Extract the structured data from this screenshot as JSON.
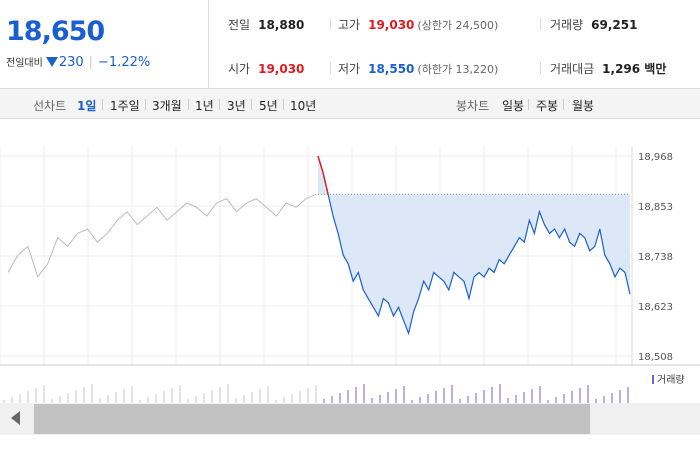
{
  "summary": {
    "current_price": "18,650",
    "change_label": "전일대비",
    "change_amount": "230",
    "change_pct": "−1.22%",
    "stats": {
      "prev_close": {
        "label": "전일",
        "value": "18,880"
      },
      "high": {
        "label": "고가",
        "value": "19,030",
        "sub": "(상한가 24,500)"
      },
      "volume": {
        "label": "거래량",
        "value": "69,251"
      },
      "open": {
        "label": "시가",
        "value": "19,030"
      },
      "low": {
        "label": "저가",
        "value": "18,550",
        "sub": "(하한가 13,220)"
      },
      "trade_value": {
        "label": "거래대금",
        "value": "1,296 백만"
      }
    }
  },
  "tabs": {
    "line_label": "선차트",
    "line_items": [
      "1일",
      "1주일",
      "3개월",
      "1년",
      "3년",
      "5년",
      "10년"
    ],
    "active": "1일",
    "candle_label": "봉차트",
    "candle_items": [
      "일봉",
      "주봉",
      "월봉"
    ]
  },
  "chart_data": {
    "type": "line",
    "y_ticks": [
      "18,968",
      "18,853",
      "18,738",
      "18,623",
      "18,508"
    ],
    "ylim": [
      18508,
      18968
    ],
    "reference_price": 18880,
    "volume_legend": "거래량",
    "colors": {
      "prev_day": "#bbbbbb",
      "up": "#e0191f",
      "down": "#1a5fd1",
      "fill": "#dce8f8",
      "volume": "#7b5fc0"
    },
    "prev_day_series": [
      18700,
      18740,
      18760,
      18690,
      18720,
      18780,
      18760,
      18790,
      18800,
      18770,
      18790,
      18820,
      18840,
      18810,
      18830,
      18850,
      18820,
      18840,
      18860,
      18850,
      18830,
      18860,
      18870,
      18840,
      18860,
      18870,
      18850,
      18830,
      18860,
      18850,
      18870,
      18880
    ],
    "today_series": [
      18968,
      18930,
      18880,
      18830,
      18790,
      18740,
      18720,
      18680,
      18700,
      18660,
      18640,
      18620,
      18600,
      18640,
      18630,
      18600,
      18620,
      18590,
      18560,
      18610,
      18640,
      18680,
      18660,
      18700,
      18690,
      18680,
      18660,
      18700,
      18690,
      18680,
      18640,
      18690,
      18700,
      18690,
      18710,
      18700,
      18730,
      18720,
      18740,
      18760,
      18780,
      18770,
      18820,
      18790,
      18840,
      18810,
      18790,
      18800,
      18780,
      18800,
      18770,
      18760,
      18790,
      18780,
      18750,
      18760,
      18800,
      18740,
      18720,
      18690,
      18710,
      18700,
      18650
    ]
  },
  "scrollbar": {
    "left_arrow": "left-arrow"
  }
}
